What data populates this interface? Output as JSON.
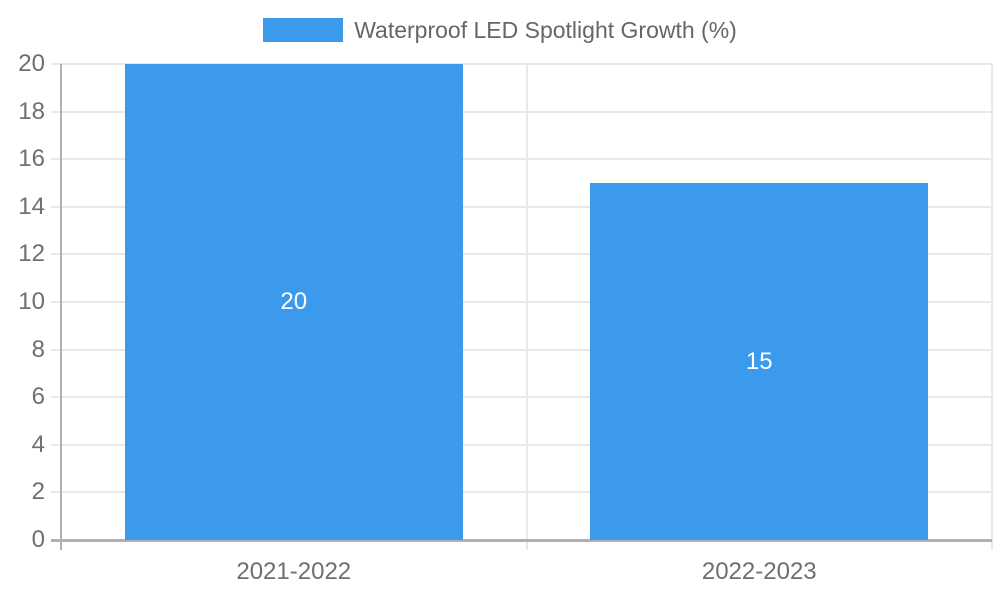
{
  "chart_data": {
    "type": "bar",
    "categories": [
      "2021-2022",
      "2022-2023"
    ],
    "series": [
      {
        "name": "Waterproof LED Spotlight Growth (%)",
        "values": [
          20,
          15
        ]
      }
    ],
    "title": "Waterproof LED Spotlight Growth (%)",
    "xlabel": "",
    "ylabel": "",
    "ylim": [
      0,
      20
    ],
    "yticks": [
      0,
      2,
      4,
      6,
      8,
      10,
      12,
      14,
      16,
      18,
      20
    ],
    "grid": true,
    "legend_position": "top",
    "value_labels_inside_bars": true
  },
  "style": {
    "accent_color": "#3B9AEC",
    "grid_color": "#e9e9e9",
    "axis_color": "#b0b0b0",
    "tick_text_color": "#6f6f6f",
    "legend_text_color": "#666666",
    "value_text_color": "#ffffff",
    "background_color": "#ffffff"
  }
}
